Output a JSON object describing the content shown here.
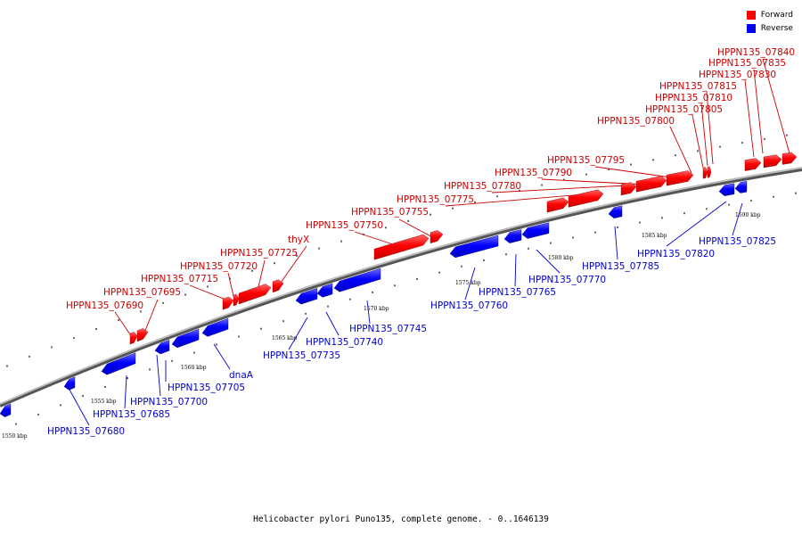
{
  "legend": {
    "forward_label": "Forward",
    "reverse_label": "Reverse",
    "forward_color": "#ff0000",
    "reverse_color": "#0000ff"
  },
  "caption": "Helicobacter pylori Puno135, complete genome. - 0..1646139",
  "scale_labels": [
    "1550 kbp",
    "1555 kbp",
    "1560 kbp",
    "1565 kbp",
    "1570 kbp",
    "1575 kbp",
    "1580 kbp",
    "1585 kbp",
    "1590 kbp"
  ],
  "forward_genes": [
    "HPPN135_07690",
    "HPPN135_07695",
    "HPPN135_07715",
    "HPPN135_07720",
    "HPPN135_07725",
    "thyX",
    "HPPN135_07750",
    "HPPN135_07755",
    "HPPN135_07775",
    "HPPN135_07780",
    "HPPN135_07790",
    "HPPN135_07795",
    "HPPN135_07800",
    "HPPN135_07805",
    "HPPN135_07810",
    "HPPN135_07815",
    "HPPN135_07830",
    "HPPN135_07835",
    "HPPN135_07840"
  ],
  "reverse_genes": [
    "HPPN135_07680",
    "HPPN135_07685",
    "HPPN135_07700",
    "HPPN135_07705",
    "dnaA",
    "HPPN135_07735",
    "HPPN135_07740",
    "HPPN135_07745",
    "HPPN135_07760",
    "HPPN135_07765",
    "HPPN135_07770",
    "HPPN135_07785",
    "HPPN135_07820",
    "HPPN135_07825"
  ]
}
